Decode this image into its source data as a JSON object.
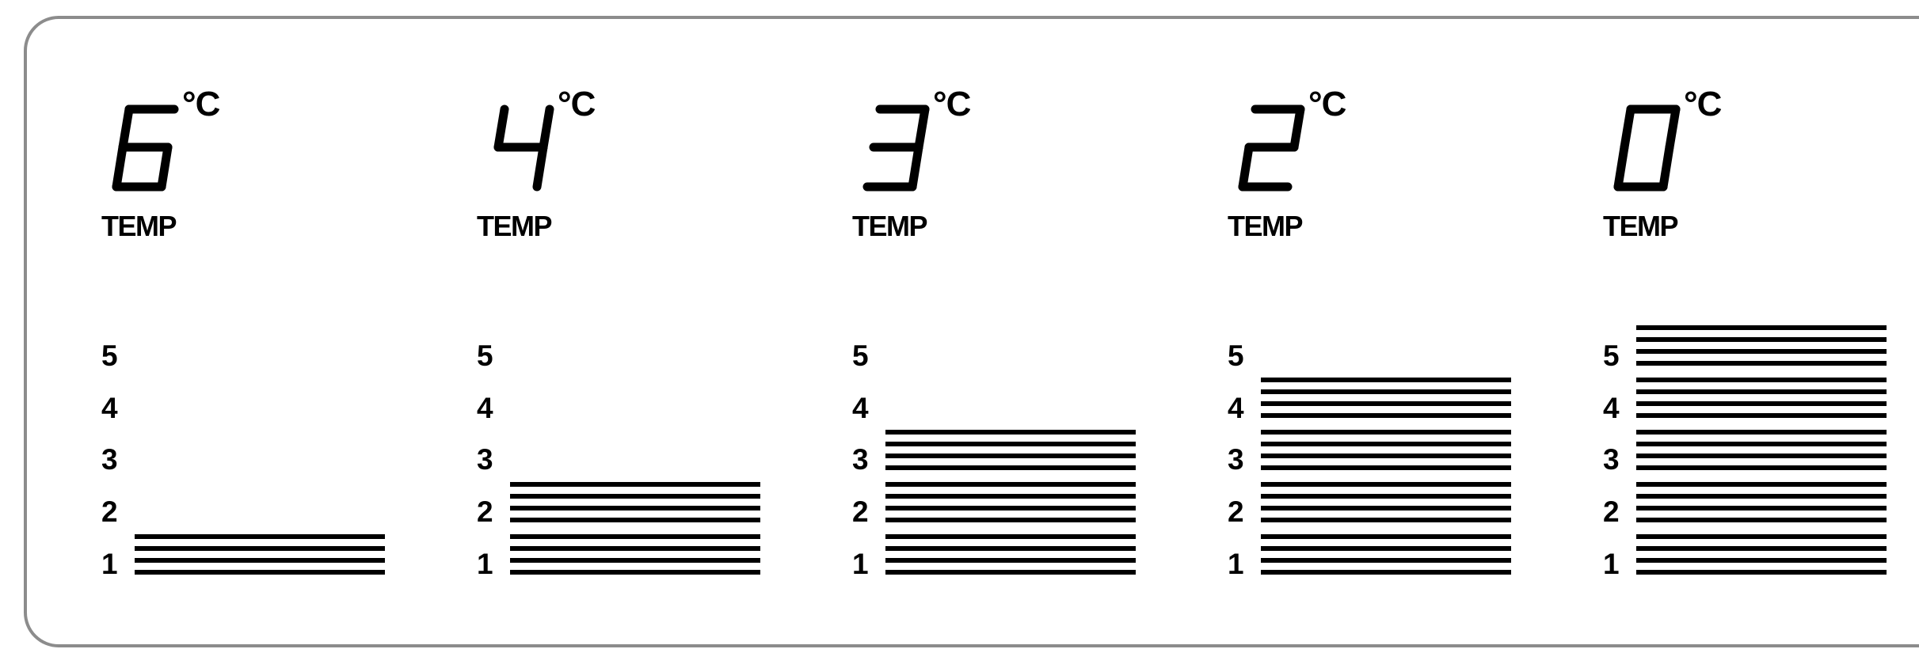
{
  "temperature_unit": "°C",
  "temp_label": "TEMP",
  "level_labels": [
    "5",
    "4",
    "3",
    "2",
    "1"
  ],
  "max_level": 5,
  "settings": [
    {
      "temperature": "6",
      "level": 1
    },
    {
      "temperature": "4",
      "level": 2
    },
    {
      "temperature": "3",
      "level": 3
    },
    {
      "temperature": "2",
      "level": 4
    },
    {
      "temperature": "0",
      "level": 5
    }
  ]
}
